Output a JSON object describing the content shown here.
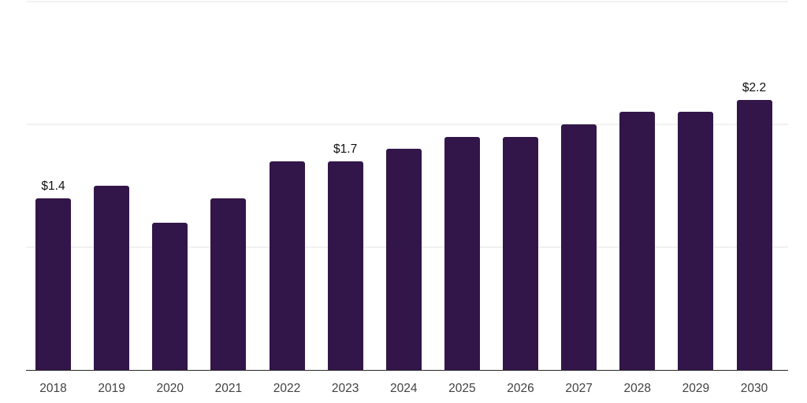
{
  "chart_data": {
    "type": "bar",
    "categories": [
      "2018",
      "2019",
      "2020",
      "2021",
      "2022",
      "2023",
      "2024",
      "2025",
      "2026",
      "2027",
      "2028",
      "2029",
      "2030"
    ],
    "values": [
      1.4,
      1.5,
      1.2,
      1.4,
      1.7,
      1.7,
      1.8,
      1.9,
      1.9,
      2.0,
      2.1,
      2.1,
      2.2
    ],
    "data_labels": [
      {
        "category": "2018",
        "text": "$1.4"
      },
      {
        "category": "2023",
        "text": "$1.7"
      },
      {
        "category": "2030",
        "text": "$2.2"
      }
    ],
    "title": "",
    "xlabel": "",
    "ylabel": "",
    "ylim": [
      0,
      3
    ],
    "gridline_step": 1,
    "grid": "horizontal, unlabeled",
    "legend": "none",
    "colors": {
      "bar": "#321649",
      "axis_line": "#262626",
      "gridline": "#f1f1f1",
      "value_label": "#111111",
      "tick_label": "#424242",
      "background": "#ffffff"
    }
  }
}
